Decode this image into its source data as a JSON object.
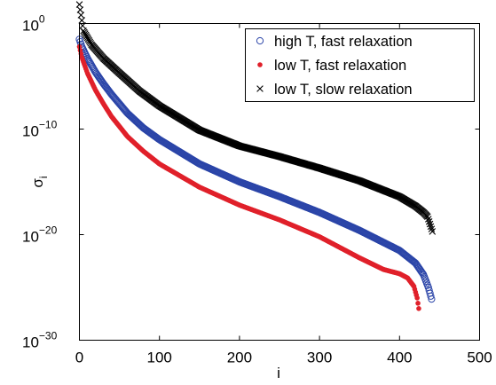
{
  "chart_data": {
    "type": "scatter",
    "xlabel": "i",
    "ylabel": "σ",
    "ylabel_sub": "i",
    "xlim": [
      0,
      500
    ],
    "ylim_log10": [
      -30,
      0
    ],
    "y_scale": "log",
    "x_ticks": [
      "0",
      "100",
      "200",
      "300",
      "400",
      "500"
    ],
    "y_tick_exponents": [
      "0",
      "−10",
      "−20",
      "−30"
    ],
    "y_tick_base": "10",
    "grid": false,
    "legend_position": "top-right",
    "series": [
      {
        "name": "high T, fast relaxation",
        "marker": "circle-open",
        "color": "#2b45a8",
        "n_points": 441,
        "x_range": [
          0,
          440
        ],
        "log10_y_at_x": [
          [
            0,
            -1.5
          ],
          [
            3,
            -2.2
          ],
          [
            10,
            -3.3
          ],
          [
            20,
            -4.6
          ],
          [
            30,
            -5.7
          ],
          [
            40,
            -6.7
          ],
          [
            60,
            -8.5
          ],
          [
            80,
            -9.9
          ],
          [
            100,
            -11.0
          ],
          [
            150,
            -13.3
          ],
          [
            200,
            -15.0
          ],
          [
            250,
            -16.4
          ],
          [
            300,
            -17.9
          ],
          [
            350,
            -19.6
          ],
          [
            400,
            -21.5
          ],
          [
            420,
            -22.7
          ],
          [
            430,
            -23.8
          ],
          [
            436,
            -25.0
          ],
          [
            440,
            -26.1
          ]
        ]
      },
      {
        "name": "low T, fast relaxation",
        "marker": "filled-dot",
        "color": "#e0202a",
        "n_points": 424,
        "x_range": [
          0,
          424
        ],
        "log10_y_at_x": [
          [
            0,
            -2.2
          ],
          [
            3,
            -3.2
          ],
          [
            10,
            -4.7
          ],
          [
            20,
            -6.3
          ],
          [
            30,
            -7.6
          ],
          [
            40,
            -8.8
          ],
          [
            60,
            -10.7
          ],
          [
            80,
            -12.1
          ],
          [
            100,
            -13.3
          ],
          [
            150,
            -15.5
          ],
          [
            200,
            -17.2
          ],
          [
            250,
            -18.6
          ],
          [
            300,
            -20.2
          ],
          [
            350,
            -22.2
          ],
          [
            380,
            -23.3
          ],
          [
            400,
            -23.7
          ],
          [
            410,
            -24.1
          ],
          [
            418,
            -24.9
          ],
          [
            422,
            -26.0
          ],
          [
            424,
            -27.0
          ]
        ]
      },
      {
        "name": "low T, slow relaxation",
        "marker": "x",
        "color": "#000000",
        "n_points": 441,
        "x_range": [
          0,
          441
        ],
        "log10_y_at_x": [
          [
            0,
            1.8
          ],
          [
            5,
            -0.7
          ],
          [
            15,
            -2.0
          ],
          [
            30,
            -3.3
          ],
          [
            50,
            -4.7
          ],
          [
            75,
            -6.4
          ],
          [
            100,
            -7.8
          ],
          [
            150,
            -10.1
          ],
          [
            200,
            -11.6
          ],
          [
            250,
            -12.6
          ],
          [
            300,
            -13.7
          ],
          [
            350,
            -14.9
          ],
          [
            400,
            -16.4
          ],
          [
            420,
            -17.3
          ],
          [
            430,
            -17.9
          ],
          [
            435,
            -18.3
          ],
          [
            438,
            -19.0
          ],
          [
            441,
            -19.7
          ]
        ]
      }
    ]
  }
}
